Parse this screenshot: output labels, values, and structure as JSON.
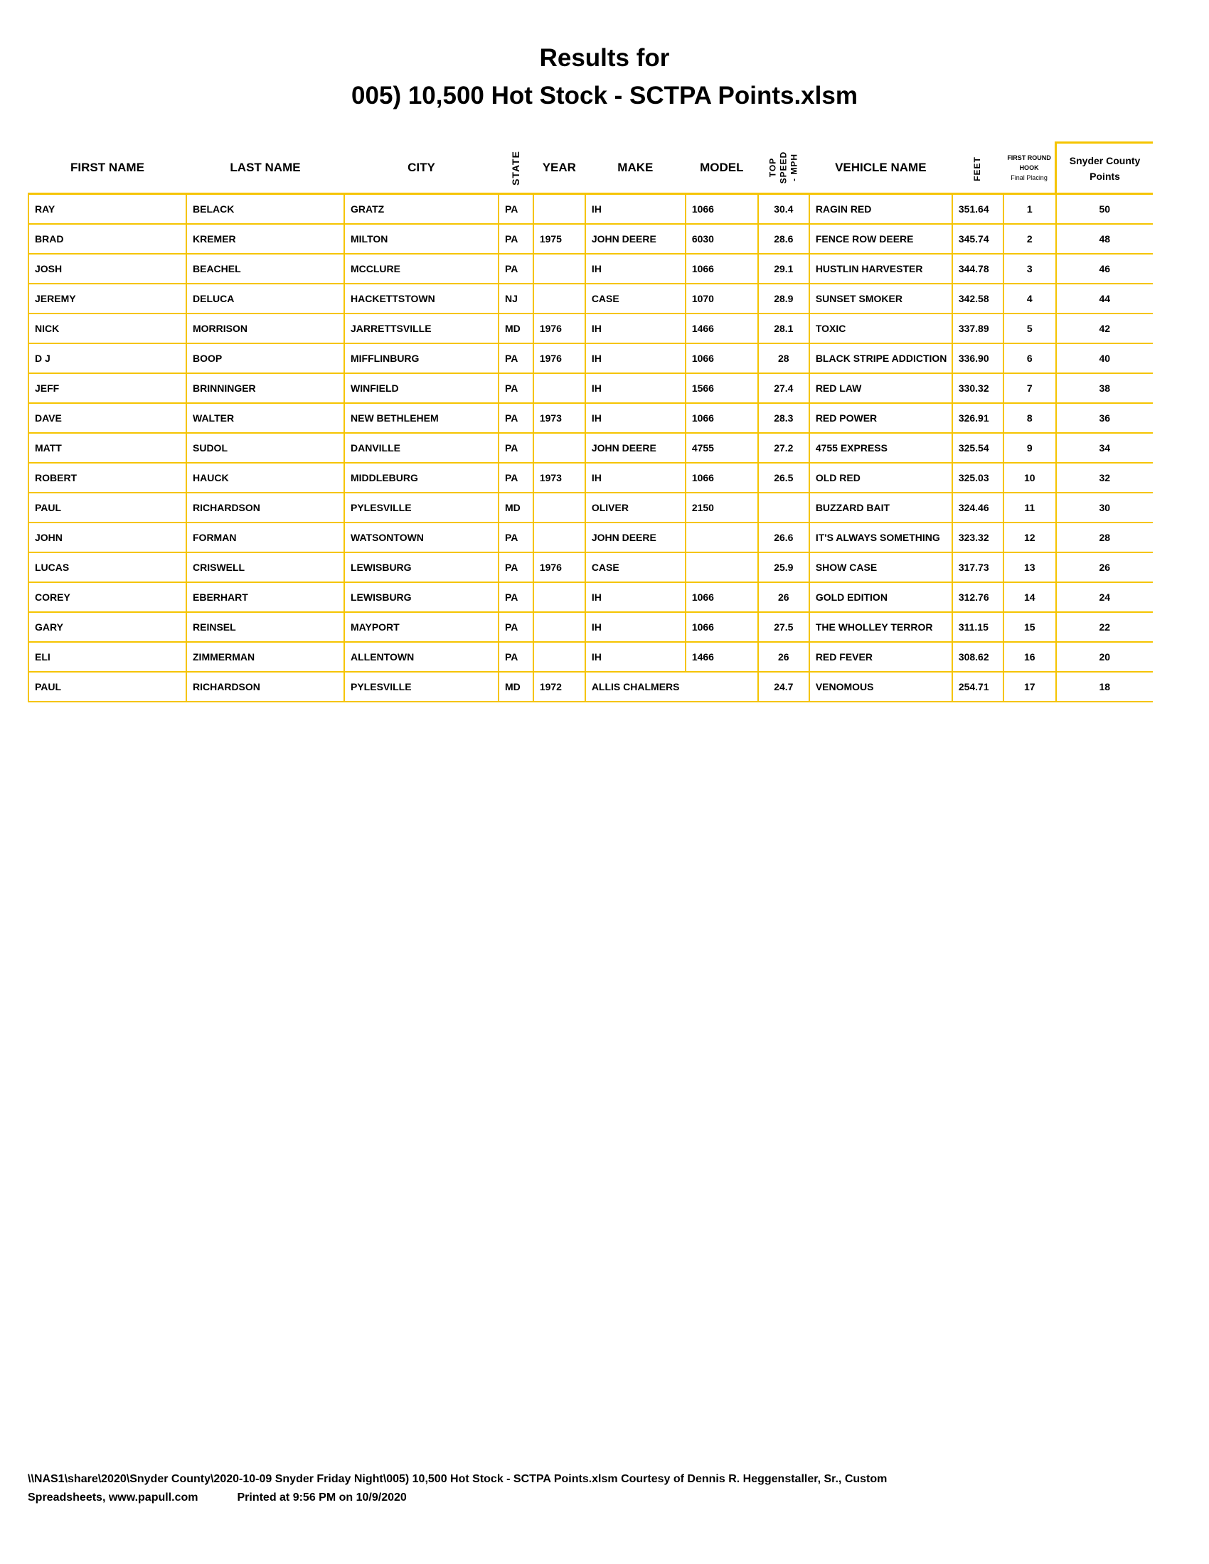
{
  "title_line1": "Results for",
  "title_line2": "005) 10,500 Hot Stock - SCTPA Points.xlsm",
  "colors": {
    "grid": "#f5c400",
    "text": "#000000"
  },
  "headers": {
    "first_name": "FIRST NAME",
    "last_name": "LAST NAME",
    "city": "CITY",
    "state": "STATE",
    "year": "YEAR",
    "make": "MAKE",
    "model": "MODEL",
    "top_speed": "TOP\nSPEED\n- MPH",
    "vehicle_name": "VEHICLE NAME",
    "feet": "FEET",
    "hook_line1": "FIRST ROUND",
    "hook_line2": "HOOK",
    "hook_line3": "Final Placing",
    "points_line1": "Snyder County",
    "points_line2": "Points"
  },
  "rows": [
    {
      "first": "RAY",
      "last": "BELACK",
      "city": "GRATZ",
      "state": "PA",
      "year": "",
      "make": "IH",
      "model": "1066",
      "speed": "30.4",
      "vehicle": "RAGIN RED",
      "feet": "351.64",
      "place": "1",
      "points": "50"
    },
    {
      "first": "BRAD",
      "last": "KREMER",
      "city": "MILTON",
      "state": "PA",
      "year": "1975",
      "make": "JOHN DEERE",
      "model": "6030",
      "speed": "28.6",
      "vehicle": "FENCE ROW DEERE",
      "feet": "345.74",
      "place": "2",
      "points": "48"
    },
    {
      "first": "JOSH",
      "last": "BEACHEL",
      "city": "MCCLURE",
      "state": "PA",
      "year": "",
      "make": "IH",
      "model": "1066",
      "speed": "29.1",
      "vehicle": "HUSTLIN HARVESTER",
      "feet": "344.78",
      "place": "3",
      "points": "46"
    },
    {
      "first": "JEREMY",
      "last": "DELUCA",
      "city": "HACKETTSTOWN",
      "state": "NJ",
      "year": "",
      "make": "CASE",
      "model": "1070",
      "speed": "28.9",
      "vehicle": "SUNSET SMOKER",
      "feet": "342.58",
      "place": "4",
      "points": "44"
    },
    {
      "first": "NICK",
      "last": "MORRISON",
      "city": "JARRETTSVILLE",
      "state": "MD",
      "year": "1976",
      "make": "IH",
      "model": "1466",
      "speed": "28.1",
      "vehicle": "TOXIC",
      "feet": "337.89",
      "place": "5",
      "points": "42"
    },
    {
      "first": "D J",
      "last": "BOOP",
      "city": "MIFFLINBURG",
      "state": "PA",
      "year": "1976",
      "make": "IH",
      "model": "1066",
      "speed": "28",
      "vehicle": "BLACK STRIPE ADDICTION",
      "feet": "336.90",
      "place": "6",
      "points": "40"
    },
    {
      "first": "JEFF",
      "last": "BRINNINGER",
      "city": "WINFIELD",
      "state": "PA",
      "year": "",
      "make": "IH",
      "model": "1566",
      "speed": "27.4",
      "vehicle": "RED LAW",
      "feet": "330.32",
      "place": "7",
      "points": "38"
    },
    {
      "first": "DAVE",
      "last": "WALTER",
      "city": "NEW BETHLEHEM",
      "state": "PA",
      "year": "1973",
      "make": "IH",
      "model": "1066",
      "speed": "28.3",
      "vehicle": "RED POWER",
      "feet": "326.91",
      "place": "8",
      "points": "36"
    },
    {
      "first": "MATT",
      "last": "SUDOL",
      "city": "DANVILLE",
      "state": "PA",
      "year": "",
      "make": "JOHN DEERE",
      "model": "4755",
      "speed": "27.2",
      "vehicle": "4755 EXPRESS",
      "feet": "325.54",
      "place": "9",
      "points": "34"
    },
    {
      "first": "ROBERT",
      "last": "HAUCK",
      "city": "MIDDLEBURG",
      "state": "PA",
      "year": "1973",
      "make": "IH",
      "model": "1066",
      "speed": "26.5",
      "vehicle": "OLD RED",
      "feet": "325.03",
      "place": "10",
      "points": "32"
    },
    {
      "first": "PAUL",
      "last": "RICHARDSON",
      "city": "PYLESVILLE",
      "state": "MD",
      "year": "",
      "make": "OLIVER",
      "model": "2150",
      "speed": "",
      "vehicle": "BUZZARD BAIT",
      "feet": "324.46",
      "place": "11",
      "points": "30"
    },
    {
      "first": "JOHN",
      "last": "FORMAN",
      "city": "WATSONTOWN",
      "state": "PA",
      "year": "",
      "make": "JOHN DEERE",
      "model": "",
      "speed": "26.6",
      "vehicle": "IT'S ALWAYS SOMETHING",
      "feet": "323.32",
      "place": "12",
      "points": "28"
    },
    {
      "first": "LUCAS",
      "last": "CRISWELL",
      "city": "LEWISBURG",
      "state": "PA",
      "year": "1976",
      "make": "CASE",
      "model": "",
      "speed": "25.9",
      "vehicle": "SHOW CASE",
      "feet": "317.73",
      "place": "13",
      "points": "26"
    },
    {
      "first": "COREY",
      "last": "EBERHART",
      "city": "LEWISBURG",
      "state": "PA",
      "year": "",
      "make": "IH",
      "model": "1066",
      "speed": "26",
      "vehicle": "GOLD EDITION",
      "feet": "312.76",
      "place": "14",
      "points": "24"
    },
    {
      "first": "GARY",
      "last": "REINSEL",
      "city": "MAYPORT",
      "state": "PA",
      "year": "",
      "make": "IH",
      "model": "1066",
      "speed": "27.5",
      "vehicle": "THE WHOLLEY TERROR",
      "feet": "311.15",
      "place": "15",
      "points": "22"
    },
    {
      "first": "ELI",
      "last": "ZIMMERMAN",
      "city": "ALLENTOWN",
      "state": "PA",
      "year": "",
      "make": "IH",
      "model": "1466",
      "speed": "26",
      "vehicle": "RED FEVER",
      "feet": "308.62",
      "place": "16",
      "points": "20"
    },
    {
      "first": "PAUL",
      "last": "RICHARDSON",
      "city": "PYLESVILLE",
      "state": "MD",
      "year": "1972",
      "make": "ALLIS CHALMERS",
      "model": "",
      "speed": "24.7",
      "vehicle": "VENOMOUS",
      "feet": "254.71",
      "place": "17",
      "points": "18",
      "make_spans_model": true
    }
  ],
  "footer": {
    "line1": "\\\\NAS1\\share\\2020\\Snyder County\\2020-10-09 Snyder Friday Night\\005) 10,500 Hot Stock - SCTPA Points.xlsm  Courtesy of Dennis R. Heggenstaller, Sr., Custom",
    "line2": "Spreadsheets, www.papull.com",
    "printed": "Printed at 9:56 PM on 10/9/2020"
  }
}
